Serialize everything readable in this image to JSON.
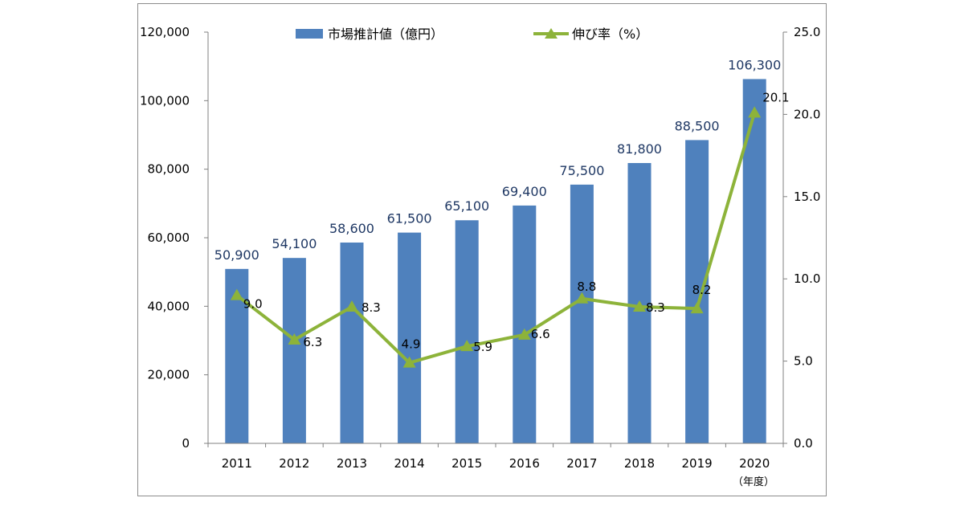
{
  "chart_data": {
    "type": "bar+line",
    "categories": [
      "2011",
      "2012",
      "2013",
      "2014",
      "2015",
      "2016",
      "2017",
      "2018",
      "2019",
      "2020"
    ],
    "x_unit_label": "（年度）",
    "series": [
      {
        "name": "市場推計値（億円）",
        "type": "bar",
        "axis": "left",
        "color": "#4f81bd",
        "values": [
          50900,
          54100,
          58600,
          61500,
          65100,
          69400,
          75500,
          81800,
          88500,
          106300
        ],
        "labels": [
          "50,900",
          "54,100",
          "58,600",
          "61,500",
          "65,100",
          "69,400",
          "75,500",
          "81,800",
          "88,500",
          "106,300"
        ]
      },
      {
        "name": "伸び率（%）",
        "type": "line",
        "axis": "right",
        "color": "#8db33a",
        "marker": "triangle",
        "values": [
          9.0,
          6.3,
          8.3,
          4.9,
          5.9,
          6.6,
          8.8,
          8.3,
          8.2,
          20.1
        ],
        "labels": [
          "9.0",
          "6.3",
          "8.3",
          "4.9",
          "5.9",
          "6.6",
          "8.8",
          "8.3",
          "8.2",
          "20.1"
        ]
      }
    ],
    "left_axis": {
      "ylim": [
        0,
        120000
      ],
      "ticks": [
        0,
        20000,
        40000,
        60000,
        80000,
        100000,
        120000
      ],
      "tick_labels": [
        "0",
        "20,000",
        "40,000",
        "60,000",
        "80,000",
        "100,000",
        "120,000"
      ]
    },
    "right_axis": {
      "ylim": [
        0,
        25
      ],
      "ticks": [
        0,
        5,
        10,
        15,
        20,
        25
      ],
      "tick_labels": [
        "0.0",
        "5.0",
        "10.0",
        "15.0",
        "20.0",
        "25.0"
      ]
    },
    "legend": [
      "市場推計値（億円）",
      "伸び率（%）"
    ],
    "legend_position": "top-center",
    "grid": false
  }
}
